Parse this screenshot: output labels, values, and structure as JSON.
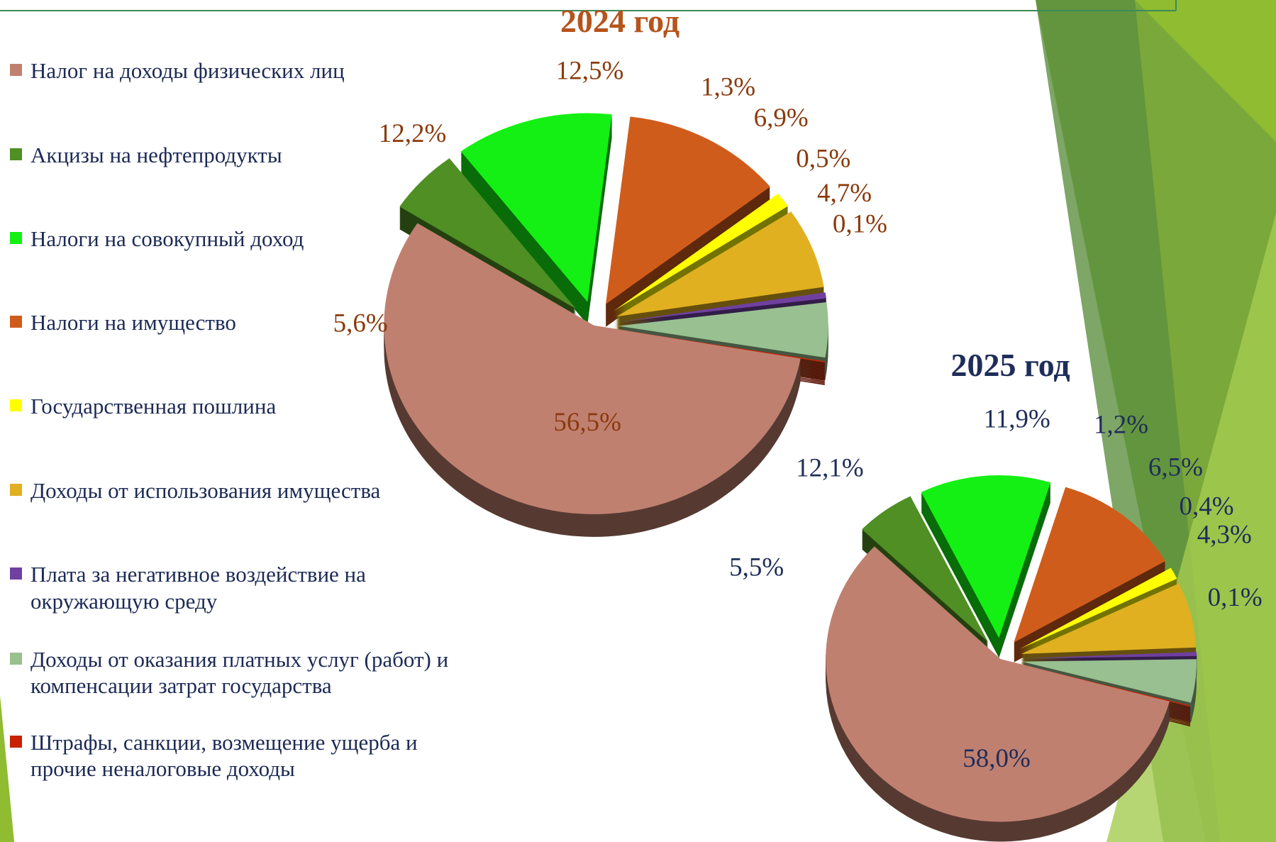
{
  "chart_data": [
    {
      "type": "pie",
      "title": "2024 год",
      "title_color": "#b5541c",
      "label_color": "#8a3a0c",
      "categories": [
        "Налог на доходы физических лиц",
        "Акцизы на нефтепродукты",
        "Налоги на совокупный доход",
        "Налоги на имущество",
        "Государственная пошлина",
        "Доходы от использования имущества",
        "Плата за негативное воздействие на окружающую среду",
        "Доходы от оказания платных услуг (работ) и компенсации затрат государства",
        "Штрафы, санкции, возмещение ущерба и прочие неналоговые доходы"
      ],
      "colors": [
        "#c08070",
        "#4f8f23",
        "#14f014",
        "#d05c1c",
        "#ffff00",
        "#e0b020",
        "#7040a0",
        "#98c090",
        "#c82000"
      ],
      "values": [
        56.5,
        5.6,
        12.2,
        12.5,
        1.3,
        6.9,
        0.5,
        4.7,
        0.1
      ],
      "value_labels": [
        "56,5%",
        "5,6%",
        "12,2%",
        "12,5%",
        "1,3%",
        "6,9%",
        "0,5%",
        "4,7%",
        "0,1%"
      ]
    },
    {
      "type": "pie",
      "title": "2025 год",
      "title_color": "#1f2d5a",
      "label_color": "#1f2d5a",
      "values": [
        58.0,
        5.5,
        12.1,
        11.9,
        1.2,
        6.5,
        0.4,
        4.3,
        0.1
      ],
      "value_labels": [
        "58,0%",
        "5,5%",
        "12,1%",
        "11,9%",
        "1,2%",
        "6,5%",
        "0,4%",
        "4,3%",
        "0,1%"
      ]
    }
  ]
}
